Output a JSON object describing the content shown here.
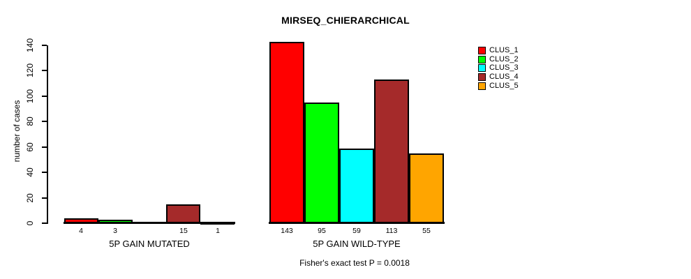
{
  "chart_data": {
    "type": "bar",
    "title": "MIRSEQ_CHIERARCHICAL",
    "ylabel": "number of cases",
    "ylim": [
      0,
      140
    ],
    "y_ticks": [
      0,
      20,
      40,
      60,
      80,
      100,
      120,
      140
    ],
    "groups": [
      "5P GAIN MUTATED",
      "5P GAIN WILD-TYPE"
    ],
    "series": [
      {
        "name": "CLUS_1",
        "color": "#FF0000",
        "values": [
          4,
          143
        ]
      },
      {
        "name": "CLUS_2",
        "color": "#00FF00",
        "values": [
          3,
          95
        ]
      },
      {
        "name": "CLUS_3",
        "color": "#00FFFF",
        "values": [
          0,
          59
        ]
      },
      {
        "name": "CLUS_4",
        "color": "#A52A2A",
        "values": [
          15,
          113
        ]
      },
      {
        "name": "CLUS_5",
        "color": "#FFA500",
        "values": [
          1,
          55
        ]
      }
    ],
    "bar_value_labels_shown": true,
    "zero_value_labels_hidden": true,
    "annotation": "Fisher's exact test P = 0.0018",
    "legend_position": "right",
    "grid": false,
    "background": "#FFFFFF",
    "axis_color": "#000000"
  }
}
